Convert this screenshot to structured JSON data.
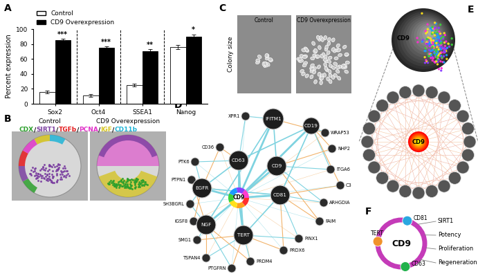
{
  "panel_labels": [
    "A",
    "B",
    "C",
    "D",
    "E",
    "F"
  ],
  "chart_data": {
    "type": "bar",
    "ylabel": "Percent expression",
    "categories": [
      "Sox2",
      "Oct4",
      "SSEA1",
      "Nanog"
    ],
    "ylim": [
      0,
      100
    ],
    "yticks": [
      0,
      20,
      40,
      60,
      80,
      100
    ],
    "legend": "top",
    "series": [
      {
        "name": "Control",
        "color": "#ffffff",
        "values": [
          16,
          11,
          25,
          76
        ],
        "errors": [
          2,
          2,
          2,
          3
        ]
      },
      {
        "name": "CD9 Overexpression",
        "color": "#000000",
        "values": [
          85,
          75,
          70,
          90
        ],
        "errors": [
          2,
          2,
          3,
          3
        ],
        "annotations": [
          "***",
          "***",
          "**",
          "*"
        ]
      }
    ]
  },
  "panel_B": {
    "images": [
      "Control",
      "CD9 Overexpression"
    ],
    "separator": "/",
    "legend": [
      {
        "text": "CDX",
        "color": "#2ca02c"
      },
      {
        "text": "SIRT1",
        "color": "#7b3fa0"
      },
      {
        "text": "TGFb",
        "color": "#e41a1c"
      },
      {
        "text": "PCNA",
        "color": "#e033c8"
      },
      {
        "text": "IGF",
        "color": "#d4c21a"
      },
      {
        "text": "CD11b",
        "color": "#1fb4d6"
      }
    ]
  },
  "panel_C": {
    "ylabel": "Colony size",
    "images": [
      "Control",
      "CD9 Overexpression"
    ]
  },
  "panel_D": {
    "center": "CD9",
    "hubs": [
      "IFITM1",
      "CD19",
      "CD63",
      "CD9",
      "EGFR",
      "CD81",
      "NGF",
      "TERT"
    ],
    "nodes": [
      "XPR1",
      "CD36",
      "PTK6",
      "PTPN1",
      "SH3BGRL",
      "IGSF8",
      "SMG1",
      "TSPAN4",
      "PTGFRN",
      "PRDM4",
      "PRDX6",
      "PINX1",
      "FAIM",
      "ARHGDIA",
      "C3",
      "ITGA6",
      "NHP2",
      "WRAP53"
    ]
  },
  "panel_E": {
    "sphere_label": "CD9",
    "center": "CD9"
  },
  "panel_F": {
    "center": "CD9",
    "nodes": [
      {
        "label": "CD81",
        "color": "#2aa7e0"
      },
      {
        "label": "TERT",
        "color": "#f0922b"
      },
      {
        "label": "CD63",
        "color": "#22b14c"
      }
    ],
    "annotations": [
      "SIRT1",
      "Potency",
      "Proliferation",
      "Regeneration"
    ]
  }
}
